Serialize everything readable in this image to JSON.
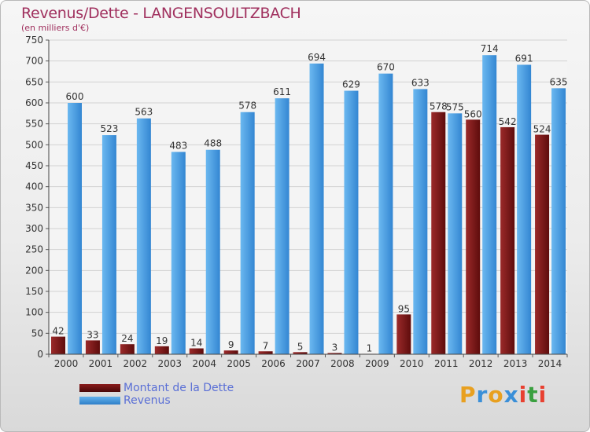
{
  "title": "Revenus/Dette - LANGENSOULTZBACH",
  "subtitle": "(en milliers d'€)",
  "chart_data": {
    "type": "bar",
    "categories": [
      "2000",
      "2001",
      "2002",
      "2003",
      "2004",
      "2005",
      "2006",
      "2007",
      "2008",
      "2009",
      "2010",
      "2011",
      "2012",
      "2013",
      "2014"
    ],
    "series": [
      {
        "name": "Montant de la Dette",
        "values": [
          42,
          33,
          24,
          19,
          14,
          9,
          7,
          5,
          3,
          1,
          95,
          578,
          560,
          542,
          524
        ],
        "color": "#7a1515"
      },
      {
        "name": "Revenus",
        "values": [
          600,
          523,
          563,
          483,
          488,
          578,
          611,
          694,
          629,
          670,
          633,
          575,
          714,
          691,
          635
        ],
        "color": "#4a9fe4"
      }
    ],
    "ylim": [
      0,
      750
    ],
    "yticks": [
      0,
      50,
      100,
      150,
      200,
      250,
      300,
      350,
      400,
      450,
      500,
      550,
      600,
      650,
      700,
      750
    ],
    "grid": true,
    "legend_position": "bottom-left"
  },
  "legend": {
    "debt_label": "Montant de la Dette",
    "revenue_label": "Revenus"
  },
  "logo": {
    "letters": [
      "P",
      "r",
      "o",
      "x",
      "i",
      "t",
      "i"
    ],
    "colors": [
      "#e8a020",
      "#3a8fd8",
      "#e8a020",
      "#3a8fd8",
      "#e84030",
      "#3aa040",
      "#e84030"
    ]
  }
}
